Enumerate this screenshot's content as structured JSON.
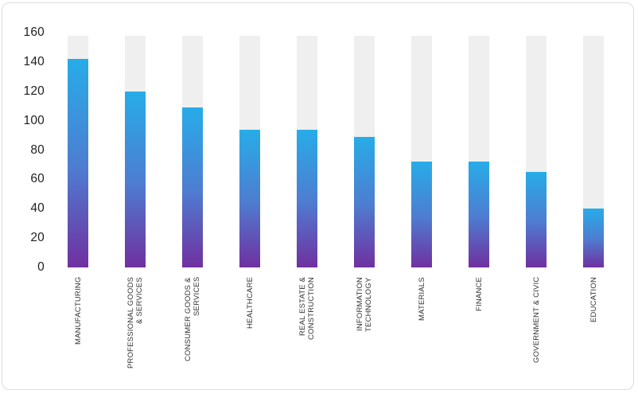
{
  "chart_data": {
    "type": "bar",
    "title": "",
    "xlabel": "",
    "ylabel": "",
    "categories": [
      "MANUFACTURING",
      "PROFESSIONAL GOODS & SERVICES",
      "CONSUMER GOODS & SERVICES",
      "HEALTHCARE",
      "REAL ESTATE & CONSTRUCTION",
      "INFORMATION TECHNOLOGY",
      "MATERIALS",
      "FINANCE",
      "GOVERNMENT & CIVIC",
      "EDUCATION"
    ],
    "category_display_lines": [
      [
        "MANUFACTURING"
      ],
      [
        "PROFESSIONAL GOODS",
        "& SERVICES"
      ],
      [
        "CONSUMER GOODS &",
        "SERVICES"
      ],
      [
        "HEALTHCARE"
      ],
      [
        "REAL ESTATE &",
        "CONSTRUCTION"
      ],
      [
        "INFORMATION",
        "TECHNOLOGY"
      ],
      [
        "MATERIALS"
      ],
      [
        "FINANCE"
      ],
      [
        "GOVERNMENT & CIVIC"
      ],
      [
        "EDUCATION"
      ]
    ],
    "values": [
      142,
      120,
      109,
      94,
      94,
      89,
      72,
      72,
      65,
      40
    ],
    "track_value": 158,
    "ylim": [
      0,
      160
    ],
    "yticks": [
      0,
      20,
      40,
      60,
      80,
      100,
      120,
      140,
      160
    ],
    "grid": false,
    "legend": false,
    "bar_label_rotation": "vertical-bottom-to-top",
    "colors": {
      "bar_gradient_top": "#27ACE8",
      "bar_gradient_mid": "#4E7DD1",
      "bar_gradient_bottom": "#7030A0",
      "track": "#EFEFEF",
      "axis_text": "#1F1F1F",
      "label_text": "#333333",
      "card_border": "#DCDCDC",
      "background": "#FFFFFF"
    }
  }
}
